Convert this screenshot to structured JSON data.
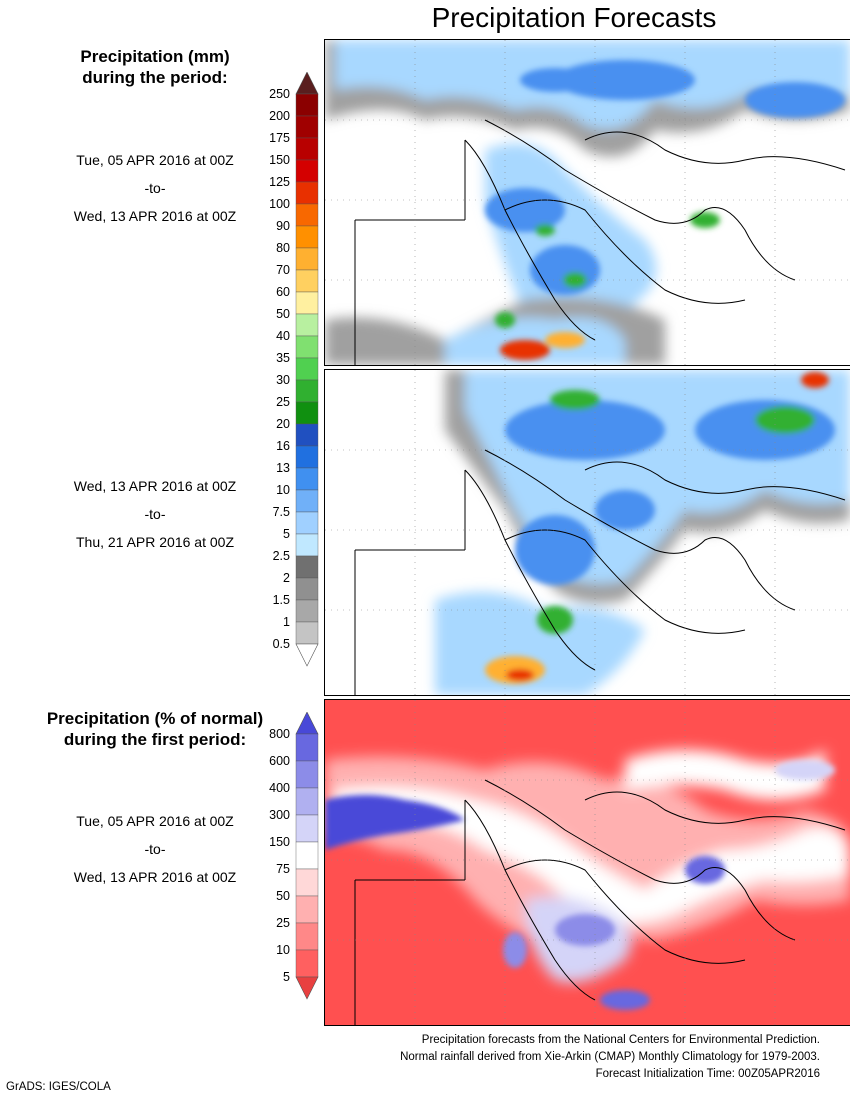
{
  "title": "Precipitation Forecasts",
  "amount_legend": {
    "heading_line1": "Precipitation (mm)",
    "heading_line2": "during the period:",
    "period1": {
      "start": "Tue, 05 APR 2016 at 00Z",
      "sep": "-to-",
      "end": "Wed, 13 APR 2016 at 00Z"
    },
    "period2": {
      "start": "Wed, 13 APR 2016 at 00Z",
      "sep": "-to-",
      "end": "Thu, 21 APR 2016 at 00Z"
    },
    "ticks": [
      "250",
      "200",
      "175",
      "150",
      "125",
      "100",
      "90",
      "80",
      "70",
      "60",
      "50",
      "40",
      "35",
      "30",
      "25",
      "20",
      "16",
      "13",
      "10",
      "7.5",
      "5",
      "2.5",
      "2",
      "1.5",
      "1",
      "0.5"
    ],
    "colors": [
      "#5a1e1e",
      "#8b0000",
      "#a00000",
      "#b80000",
      "#d40000",
      "#e83000",
      "#f86800",
      "#ff9000",
      "#ffb030",
      "#ffd060",
      "#fff0a0",
      "#b8f0a0",
      "#80e070",
      "#50d050",
      "#30b030",
      "#109010",
      "#2050c0",
      "#2070e0",
      "#4090f0",
      "#70b0f8",
      "#a0d0ff",
      "#c0e8ff",
      "#707070",
      "#909090",
      "#a8a8a8",
      "#c4c4c4",
      "#ffffff"
    ]
  },
  "percent_legend": {
    "heading_line1": "Precipitation (% of normal)",
    "heading_line2": "during the first period:",
    "period": {
      "start": "Tue, 05 APR 2016 at 00Z",
      "sep": "-to-",
      "end": "Wed, 13 APR 2016 at 00Z"
    },
    "ticks": [
      "800",
      "600",
      "400",
      "300",
      "150",
      "75",
      "50",
      "25",
      "10",
      "5"
    ],
    "colors": [
      "#4848d8",
      "#6868e0",
      "#8c8ce8",
      "#b0b0f0",
      "#d4d4f8",
      "#ffffff",
      "#ffd8d8",
      "#ffb0b0",
      "#ff8888",
      "#ff6060",
      "#e84040"
    ]
  },
  "footer": {
    "line1": "Precipitation forecasts from the National Centers for Environmental Prediction.",
    "line2": "Normal rainfall derived from Xie-Arkin (CMAP) Monthly Climatology for 1979-2003.",
    "line3": "Forecast Initialization Time: 00Z05APR2016"
  },
  "credit": "GrADS: IGES/COLA"
}
